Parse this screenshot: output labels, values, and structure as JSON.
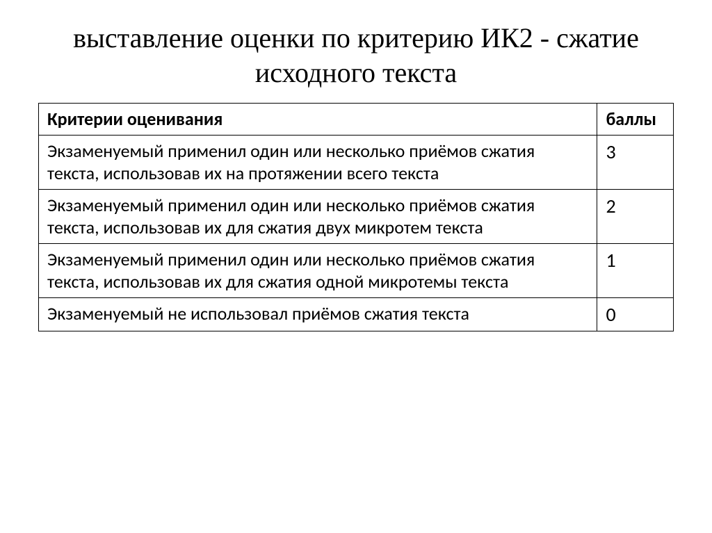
{
  "title": "выставление оценки по критерию ИК2 - сжатие исходного текста",
  "table": {
    "headers": {
      "criteria": "Критерии оценивания",
      "points": "баллы"
    },
    "rows": [
      {
        "criteria": "Экзаменуемый применил один или несколько приёмов сжатия текста, использовав их на протяжении всего текста",
        "points": "3"
      },
      {
        "criteria": "Экзаменуемый применил один или несколько приёмов сжатия текста, использовав их для сжатия двух микротем текста",
        "points": "2"
      },
      {
        "criteria": "Экзаменуемый применил один или несколько приёмов сжатия текста, использовав их для сжатия одной микротемы текста",
        "points": "1"
      },
      {
        "criteria": "Экзаменуемый не использовал приёмов сжатия текста",
        "points": "0"
      }
    ]
  },
  "style": {
    "page_bg": "#ffffff",
    "text_color": "#000000",
    "border_color": "#000000",
    "title_font_family": "Times New Roman",
    "title_font_size_pt": 30,
    "table_font_family": "Calibri",
    "table_font_size_pt": 20,
    "col_widths_pct": [
      88,
      12
    ]
  }
}
